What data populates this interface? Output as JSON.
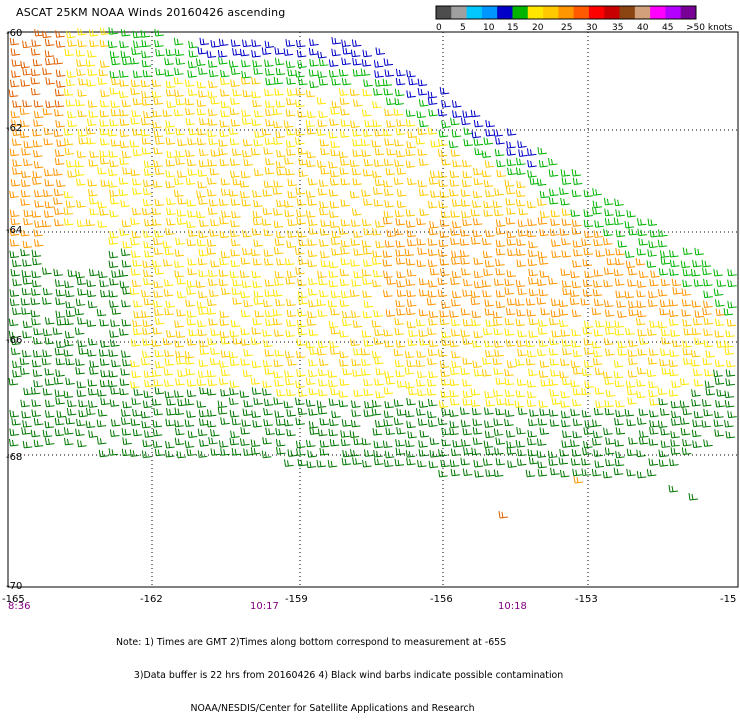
{
  "title": "ASCAT 25KM NOAA Winds 20160426 ascending",
  "legend": {
    "bins": [
      {
        "color": "#4d4d4d"
      },
      {
        "color": "#a0a0a0"
      },
      {
        "color": "#00c8ff"
      },
      {
        "color": "#0096ff"
      },
      {
        "color": "#0000c8"
      },
      {
        "color": "#00b400"
      },
      {
        "color": "#ffe600"
      },
      {
        "color": "#ffc800"
      },
      {
        "color": "#ff9600"
      },
      {
        "color": "#ff5a00"
      },
      {
        "color": "#ff0000"
      },
      {
        "color": "#c80000"
      },
      {
        "color": "#8b4513"
      },
      {
        "color": "#d2a07a"
      },
      {
        "color": "#ff00ff"
      },
      {
        "color": "#b400ff"
      },
      {
        "color": "#780096"
      }
    ],
    "labels": [
      "0",
      "5",
      "10",
      "15",
      "20",
      "25",
      "30",
      "35",
      "40",
      "45",
      ">50 knots"
    ]
  },
  "axes": {
    "lat_labels": [
      "-60",
      "-62",
      "-64",
      "-66",
      "-68",
      "-70"
    ],
    "lon_labels": [
      "-165",
      "-162",
      "-159",
      "-156",
      "-153",
      "-15"
    ],
    "times": [
      "8:36",
      "10:17",
      "10:18"
    ]
  },
  "notes": [
    "Note: 1) Times are GMT 2)Times along bottom correspond to measurement at -65S",
    "      3)Data buffer is 22 hrs from 20160426 4) Black wind barbs indicate possible contamination",
    "                         NOAA/NESDIS/Center for Satellite Applications and Research"
  ],
  "wind_colors": {
    "blue": "#0000c8",
    "cyan": "#00c8ff",
    "green": "#00b400",
    "dark_green": "#007800",
    "yellow": "#ffe600",
    "gold": "#ffc800",
    "orange": "#ff9600",
    "dark_orange": "#e06000"
  }
}
